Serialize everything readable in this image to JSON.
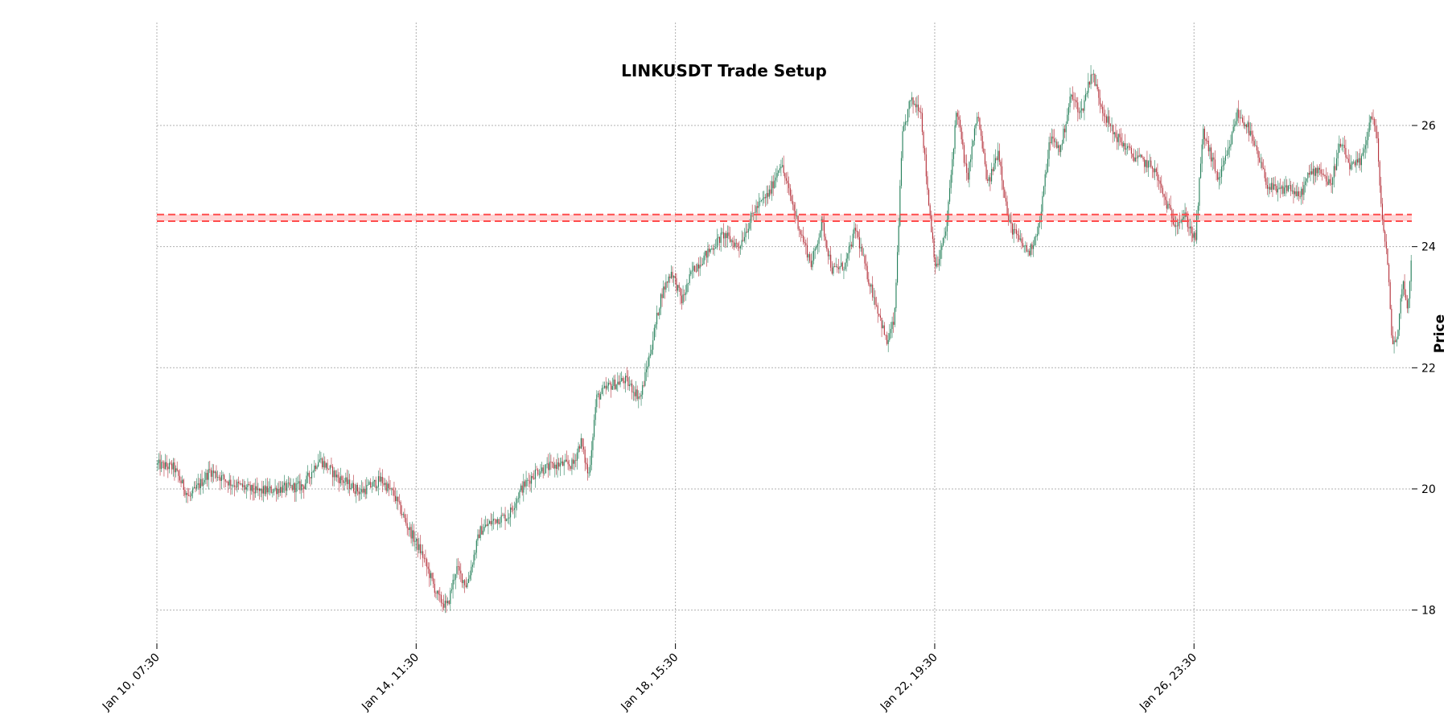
{
  "chart_data": {
    "type": "candlestick",
    "title": "LINKUSDT Trade Setup",
    "ylabel": "Price",
    "xlabel": "",
    "ylim": [
      17.45,
      27.7
    ],
    "yticks": [
      18,
      20,
      22,
      24,
      26
    ],
    "xticks": [
      "Jan 10, 07:30",
      "Jan 14, 11:30",
      "Jan 18, 15:30",
      "Jan 22, 19:30",
      "Jan 26, 23:30"
    ],
    "x_range": [
      "Jan 10, 07:30",
      "Jan 30, 11:30"
    ],
    "grid": true,
    "colors": {
      "up": "#26805b",
      "down": "#b5323c",
      "level": "#ff4d4d",
      "band": "#ffb3b3"
    },
    "levels": [
      24.53,
      24.42
    ],
    "price_path": [
      [
        "Jan 10, 07:30",
        20.4
      ],
      [
        "Jan 10, 14:00",
        20.35
      ],
      [
        "Jan 10, 20:00",
        19.85
      ],
      [
        "Jan 11, 04:00",
        20.3
      ],
      [
        "Jan 11, 12:00",
        20.1
      ],
      [
        "Jan 11, 22:00",
        19.95
      ],
      [
        "Jan 12, 06:00",
        20.0
      ],
      [
        "Jan 12, 16:00",
        20.05
      ],
      [
        "Jan 12, 22:00",
        20.5
      ],
      [
        "Jan 13, 05:00",
        20.2
      ],
      [
        "Jan 13, 14:00",
        19.95
      ],
      [
        "Jan 13, 22:00",
        20.15
      ],
      [
        "Jan 14, 03:00",
        19.9
      ],
      [
        "Jan 14, 08:00",
        19.4
      ],
      [
        "Jan 14, 14:00",
        18.9
      ],
      [
        "Jan 14, 20:00",
        18.2
      ],
      [
        "Jan 14, 23:30",
        18.05
      ],
      [
        "Jan 15, 03:00",
        18.7
      ],
      [
        "Jan 15, 07:00",
        18.4
      ],
      [
        "Jan 15, 12:00",
        19.3
      ],
      [
        "Jan 15, 18:00",
        19.5
      ],
      [
        "Jan 15, 23:00",
        19.55
      ],
      [
        "Jan 16, 04:00",
        20.0
      ],
      [
        "Jan 16, 10:00",
        20.3
      ],
      [
        "Jan 16, 18:00",
        20.4
      ],
      [
        "Jan 17, 00:00",
        20.4
      ],
      [
        "Jan 17, 03:00",
        20.8
      ],
      [
        "Jan 17, 06:00",
        20.2
      ],
      [
        "Jan 17, 09:00",
        21.5
      ],
      [
        "Jan 17, 14:00",
        21.7
      ],
      [
        "Jan 17, 20:00",
        21.8
      ],
      [
        "Jan 18, 02:00",
        21.5
      ],
      [
        "Jan 18, 06:00",
        22.3
      ],
      [
        "Jan 18, 10:00",
        23.2
      ],
      [
        "Jan 18, 14:00",
        23.6
      ],
      [
        "Jan 18, 18:00",
        23.1
      ],
      [
        "Jan 18, 22:00",
        23.6
      ],
      [
        "Jan 19, 04:00",
        23.9
      ],
      [
        "Jan 19, 10:00",
        24.2
      ],
      [
        "Jan 19, 16:00",
        24.0
      ],
      [
        "Jan 19, 22:00",
        24.6
      ],
      [
        "Jan 20, 04:00",
        24.9
      ],
      [
        "Jan 20, 08:00",
        25.4
      ],
      [
        "Jan 20, 12:00",
        24.8
      ],
      [
        "Jan 20, 16:00",
        24.2
      ],
      [
        "Jan 20, 20:00",
        23.7
      ],
      [
        "Jan 21, 00:00",
        24.4
      ],
      [
        "Jan 21, 04:00",
        23.6
      ],
      [
        "Jan 21, 09:00",
        23.7
      ],
      [
        "Jan 21, 13:00",
        24.3
      ],
      [
        "Jan 21, 17:00",
        23.6
      ],
      [
        "Jan 21, 22:00",
        22.9
      ],
      [
        "Jan 22, 01:00",
        22.4
      ],
      [
        "Jan 22, 04:00",
        22.8
      ],
      [
        "Jan 22, 07:00",
        25.8
      ],
      [
        "Jan 22, 10:00",
        26.4
      ],
      [
        "Jan 22, 14:00",
        26.3
      ],
      [
        "Jan 22, 17:00",
        24.8
      ],
      [
        "Jan 22, 20:00",
        23.6
      ],
      [
        "Jan 23, 00:00",
        24.3
      ],
      [
        "Jan 23, 04:00",
        26.3
      ],
      [
        "Jan 23, 08:00",
        25.1
      ],
      [
        "Jan 23, 12:00",
        26.2
      ],
      [
        "Jan 23, 16:00",
        25.0
      ],
      [
        "Jan 23, 20:00",
        25.6
      ],
      [
        "Jan 24, 00:00",
        24.4
      ],
      [
        "Jan 24, 04:00",
        24.1
      ],
      [
        "Jan 24, 08:00",
        23.9
      ],
      [
        "Jan 24, 12:00",
        24.4
      ],
      [
        "Jan 24, 16:00",
        25.8
      ],
      [
        "Jan 24, 20:00",
        25.6
      ],
      [
        "Jan 25, 00:00",
        26.5
      ],
      [
        "Jan 25, 04:00",
        26.2
      ],
      [
        "Jan 25, 08:00",
        26.9
      ],
      [
        "Jan 25, 12:00",
        26.3
      ],
      [
        "Jan 25, 16:00",
        25.9
      ],
      [
        "Jan 25, 20:00",
        25.7
      ],
      [
        "Jan 26, 00:00",
        25.5
      ],
      [
        "Jan 26, 04:00",
        25.4
      ],
      [
        "Jan 26, 08:00",
        25.3
      ],
      [
        "Jan 26, 12:00",
        24.8
      ],
      [
        "Jan 26, 16:00",
        24.4
      ],
      [
        "Jan 26, 20:00",
        24.5
      ],
      [
        "Jan 27, 00:00",
        24.1
      ],
      [
        "Jan 27, 03:00",
        25.9
      ],
      [
        "Jan 27, 06:00",
        25.5
      ],
      [
        "Jan 27, 09:00",
        25.1
      ],
      [
        "Jan 27, 13:00",
        25.6
      ],
      [
        "Jan 27, 16:00",
        26.2
      ],
      [
        "Jan 27, 20:00",
        26.0
      ],
      [
        "Jan 28, 00:00",
        25.5
      ],
      [
        "Jan 28, 04:00",
        25.0
      ],
      [
        "Jan 28, 08:00",
        24.9
      ],
      [
        "Jan 28, 12:00",
        25.0
      ],
      [
        "Jan 28, 16:00",
        24.8
      ],
      [
        "Jan 28, 20:00",
        25.2
      ],
      [
        "Jan 29, 00:00",
        25.3
      ],
      [
        "Jan 29, 04:00",
        25.0
      ],
      [
        "Jan 29, 08:00",
        25.7
      ],
      [
        "Jan 29, 12:00",
        25.3
      ],
      [
        "Jan 29, 16:00",
        25.4
      ],
      [
        "Jan 29, 20:00",
        26.2
      ],
      [
        "Jan 29, 22:00",
        25.8
      ],
      [
        "Jan 30, 00:00",
        24.5
      ],
      [
        "Jan 30, 02:00",
        23.8
      ],
      [
        "Jan 30, 04:00",
        22.4
      ],
      [
        "Jan 30, 06:00",
        22.5
      ],
      [
        "Jan 30, 08:00",
        23.5
      ],
      [
        "Jan 30, 10:00",
        22.9
      ],
      [
        "Jan 30, 11:30",
        24.0
      ]
    ]
  }
}
